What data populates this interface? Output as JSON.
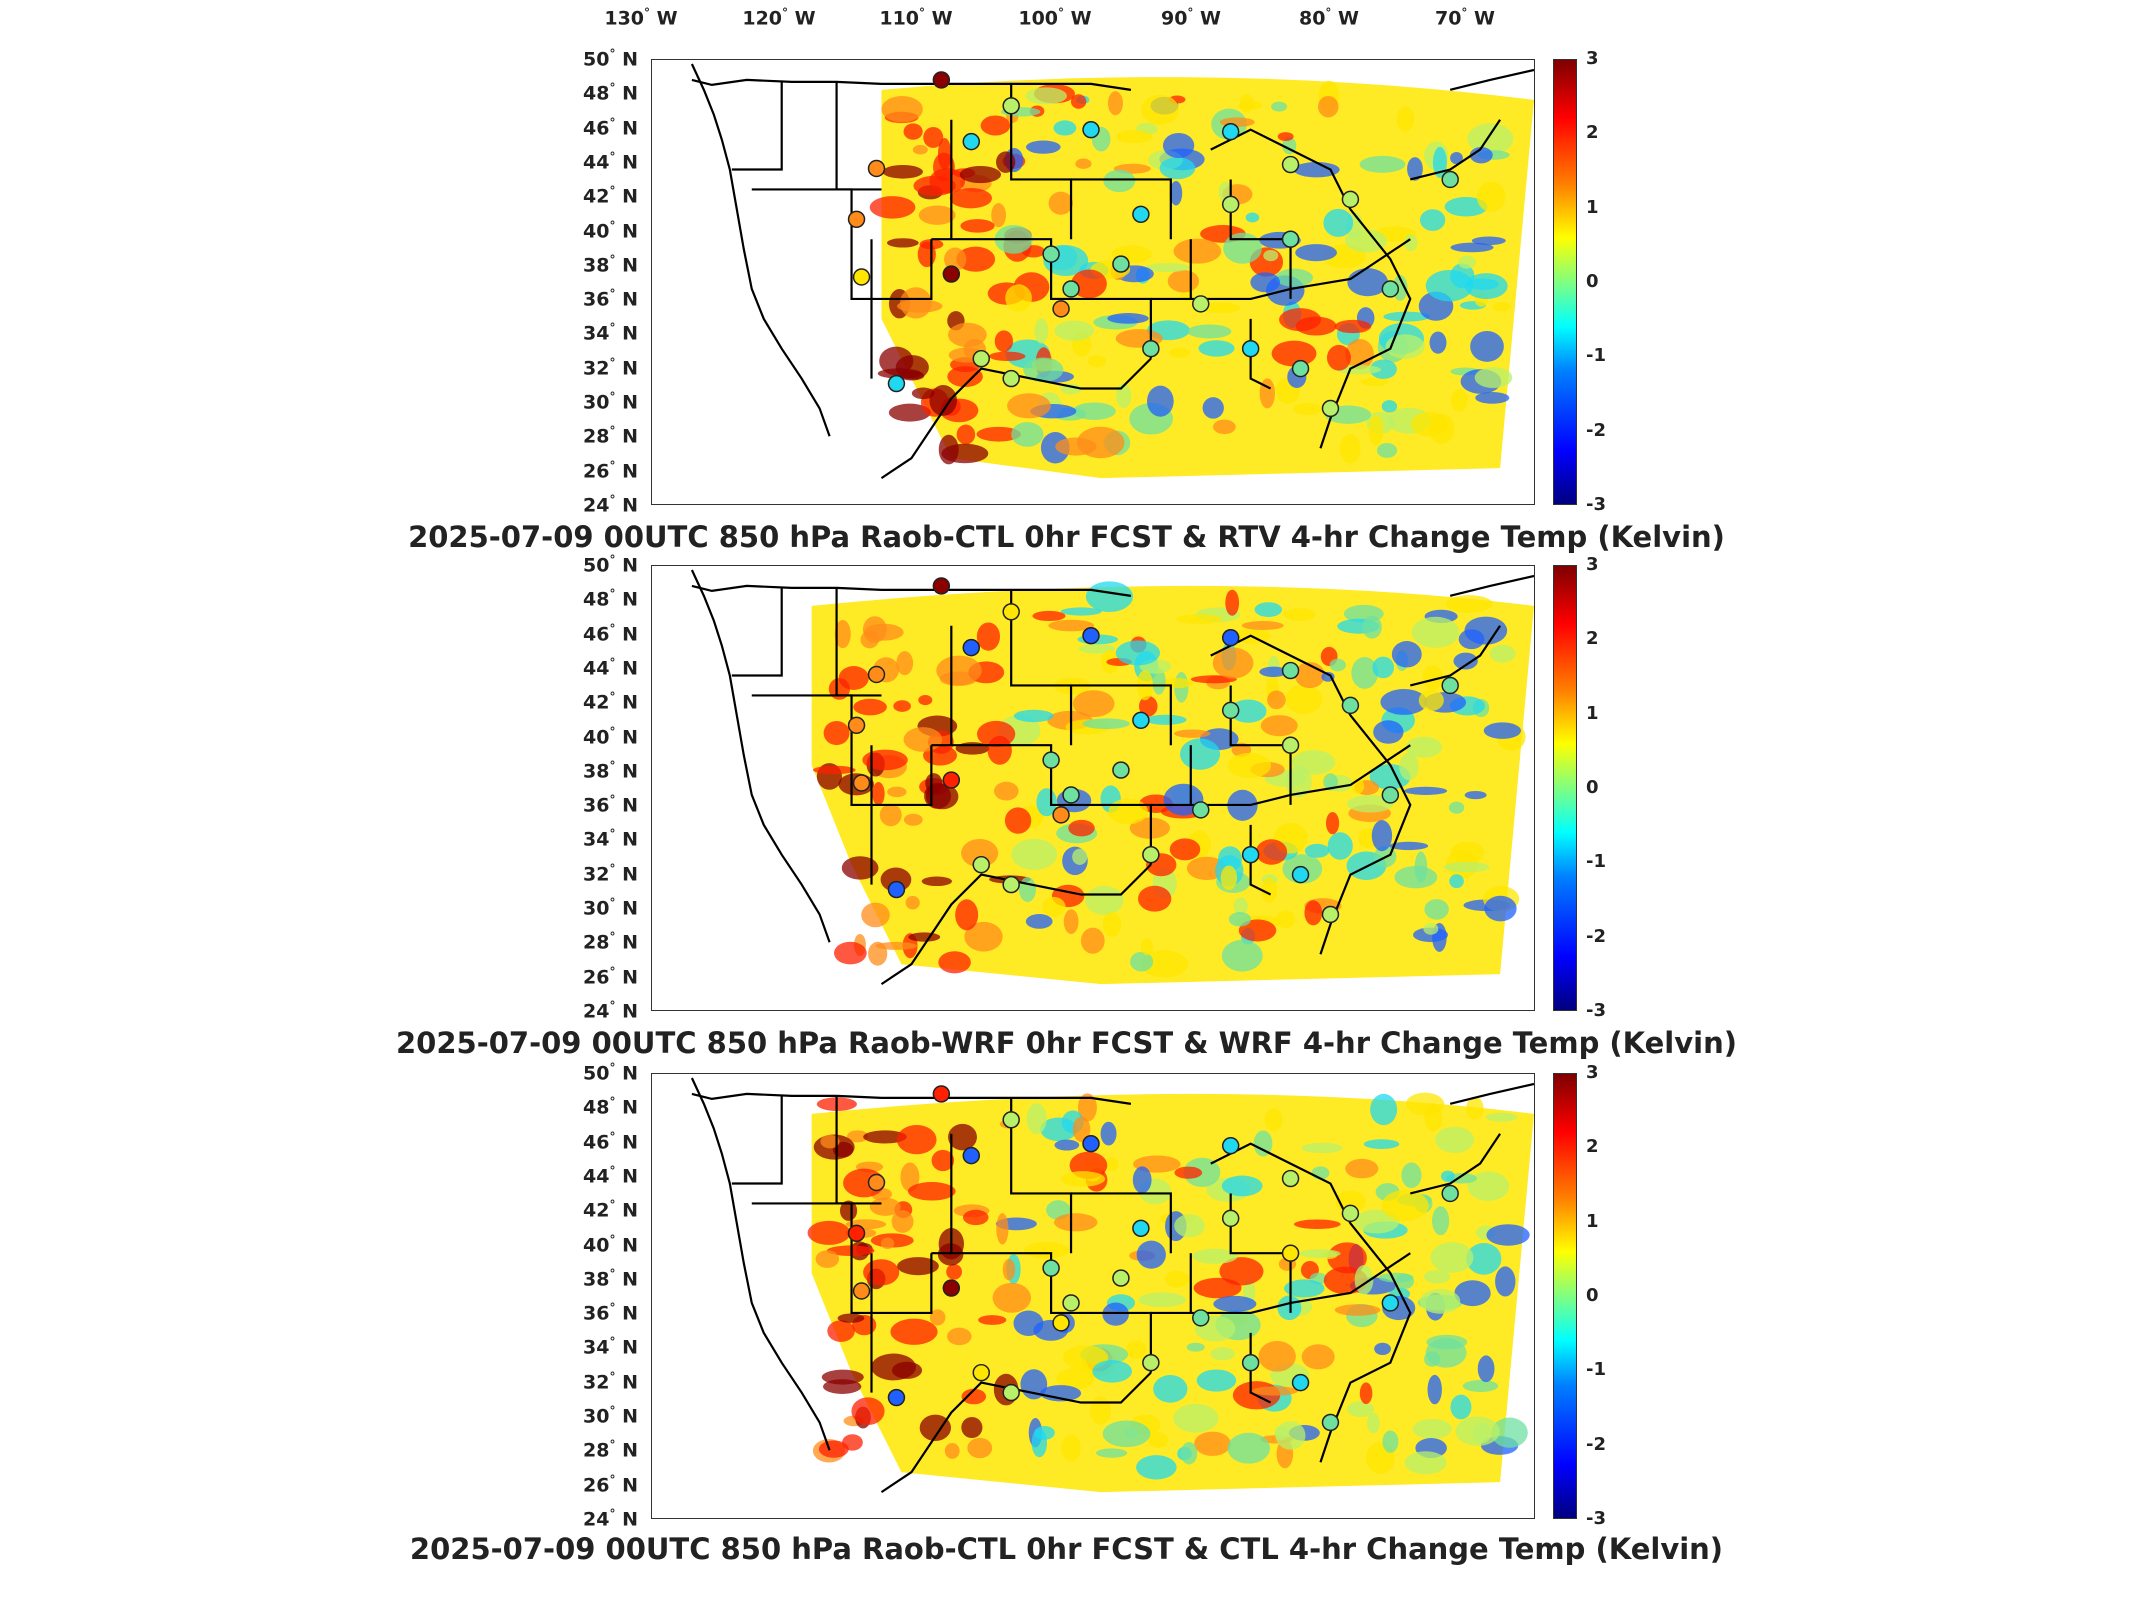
{
  "longitude_labels": [
    {
      "deg": "130",
      "dir": "W"
    },
    {
      "deg": "120",
      "dir": "W"
    },
    {
      "deg": "110",
      "dir": "W"
    },
    {
      "deg": "100",
      "dir": "W"
    },
    {
      "deg": "90",
      "dir": "W"
    },
    {
      "deg": "80",
      "dir": "W"
    },
    {
      "deg": "70",
      "dir": "W"
    }
  ],
  "latitude_labels": [
    {
      "deg": "50",
      "dir": "N"
    },
    {
      "deg": "48",
      "dir": "N"
    },
    {
      "deg": "46",
      "dir": "N"
    },
    {
      "deg": "44",
      "dir": "N"
    },
    {
      "deg": "42",
      "dir": "N"
    },
    {
      "deg": "40",
      "dir": "N"
    },
    {
      "deg": "38",
      "dir": "N"
    },
    {
      "deg": "36",
      "dir": "N"
    },
    {
      "deg": "34",
      "dir": "N"
    },
    {
      "deg": "32",
      "dir": "N"
    },
    {
      "deg": "30",
      "dir": "N"
    },
    {
      "deg": "28",
      "dir": "N"
    },
    {
      "deg": "26",
      "dir": "N"
    },
    {
      "deg": "24",
      "dir": "N"
    }
  ],
  "colorbar": {
    "ticks": [
      "3",
      "2",
      "1",
      "0",
      "-1",
      "-2",
      "-3"
    ],
    "range": [
      -3,
      3
    ],
    "colormap": "jet"
  },
  "panels": [
    {
      "title": "2025-07-09 00UTC 850 hPa Raob-CTL 0hr FCST & RTV 4-hr Change Temp (Kelvin)"
    },
    {
      "title": "2025-07-09 00UTC 850 hPa Raob-WRF 0hr FCST & WRF 4-hr Change Temp (Kelvin)"
    },
    {
      "title": "2025-07-09 00UTC 850 hPa Raob-CTL 0hr FCST & CTL 4-hr Change Temp (Kelvin)"
    }
  ],
  "colors": {
    "dark_red": "#8b0000",
    "red": "#ff2000",
    "orange": "#ff8c1a",
    "yellow": "#ffe600",
    "light_green": "#b8f06a",
    "green": "#6ee0a0",
    "cyan": "#20d8f0",
    "blue": "#2060ff",
    "dark_blue": "#0010b0"
  }
}
